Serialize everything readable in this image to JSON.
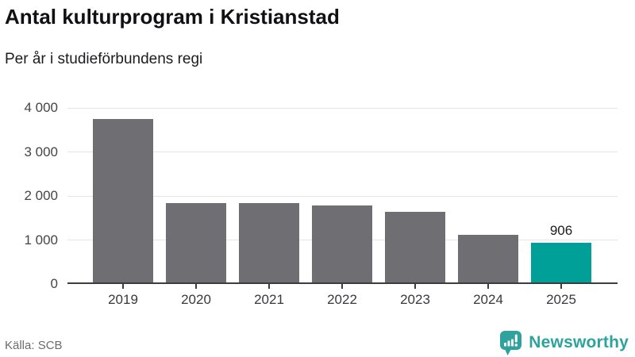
{
  "header": {
    "title": "Antal kulturprogram i Kristianstad",
    "subtitle": "Per år i studieförbundens regi"
  },
  "chart_data": {
    "type": "bar",
    "title": "Antal kulturprogram i Kristianstad",
    "subtitle": "Per år i studieförbundens regi",
    "categories": [
      "2019",
      "2020",
      "2021",
      "2022",
      "2023",
      "2024",
      "2025"
    ],
    "values": [
      3720,
      1800,
      1800,
      1750,
      1600,
      1080,
      906
    ],
    "highlight_index": 6,
    "value_label": {
      "index": 6,
      "text": "906"
    },
    "xlabel": "",
    "ylabel": "",
    "ylim": [
      0,
      4000
    ],
    "ytick_values": [
      0,
      1000,
      2000,
      3000,
      4000
    ],
    "ytick_labels": [
      "0",
      "1 000",
      "2 000",
      "3 000",
      "4 000"
    ],
    "grid": true,
    "legend": false,
    "bar_color": "#6e6e73",
    "highlight_color": "#00a099"
  },
  "footer": {
    "source": "Källa: SCB",
    "brand": "Newsworthy",
    "brand_color": "#2ea39d",
    "logo_icon": "bar-chart-speech-bubble-icon"
  }
}
